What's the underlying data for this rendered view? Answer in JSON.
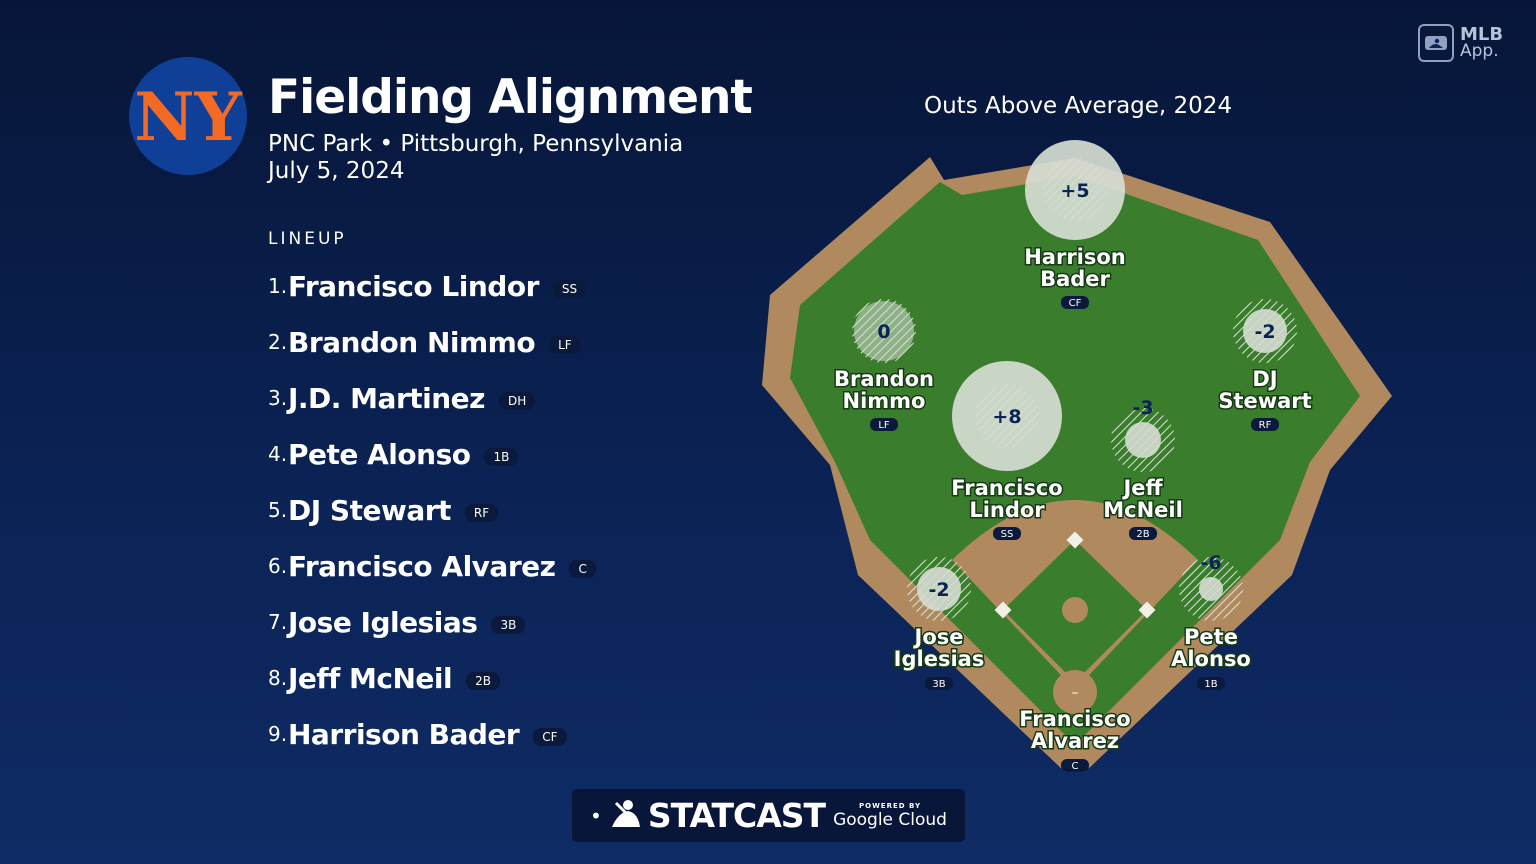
{
  "header": {
    "team_logo_text": "NY",
    "title": "Fielding Alignment",
    "venue": "PNC Park • Pittsburgh, Pennsylvania",
    "date": "July 5, 2024"
  },
  "brand": {
    "app_line1": "MLB",
    "app_line2": "App."
  },
  "lineup": {
    "heading": "LINEUP",
    "players": [
      {
        "num": "1.",
        "name": "Francisco Lindor",
        "pos": "SS"
      },
      {
        "num": "2.",
        "name": "Brandon Nimmo",
        "pos": "LF"
      },
      {
        "num": "3.",
        "name": "J.D. Martinez",
        "pos": "DH"
      },
      {
        "num": "4.",
        "name": "Pete Alonso",
        "pos": "1B"
      },
      {
        "num": "5.",
        "name": "DJ Stewart",
        "pos": "RF"
      },
      {
        "num": "6.",
        "name": "Francisco Alvarez",
        "pos": "C"
      },
      {
        "num": "7.",
        "name": "Jose Iglesias",
        "pos": "3B"
      },
      {
        "num": "8.",
        "name": "Jeff McNeil",
        "pos": "2B"
      },
      {
        "num": "9.",
        "name": "Harrison Bader",
        "pos": "CF"
      }
    ]
  },
  "field": {
    "title": "Outs Above Average, 2024",
    "fielders": [
      {
        "id": "cf",
        "first": "Harrison",
        "last": "Bader",
        "pos": "CF",
        "oaa": "+5",
        "value": 5
      },
      {
        "id": "lf",
        "first": "Brandon",
        "last": "Nimmo",
        "pos": "LF",
        "oaa": "0",
        "value": 0
      },
      {
        "id": "rf",
        "first": "DJ",
        "last": "Stewart",
        "pos": "RF",
        "oaa": "-2",
        "value": -2
      },
      {
        "id": "ss",
        "first": "Francisco",
        "last": "Lindor",
        "pos": "SS",
        "oaa": "+8",
        "value": 8
      },
      {
        "id": "2b",
        "first": "Jeff",
        "last": "McNeil",
        "pos": "2B",
        "oaa": "-3",
        "value": -3
      },
      {
        "id": "3b",
        "first": "Jose",
        "last": "Iglesias",
        "pos": "3B",
        "oaa": "-2",
        "value": -2
      },
      {
        "id": "1b",
        "first": "Pete",
        "last": "Alonso",
        "pos": "1B",
        "oaa": "-6",
        "value": -6
      },
      {
        "id": "c",
        "first": "Francisco",
        "last": "Alvarez",
        "pos": "C",
        "oaa": "–",
        "value": null
      }
    ]
  },
  "footer": {
    "statcast": "STATCAST",
    "powered_by": "POWERED BY",
    "google_cloud": "Google Cloud"
  },
  "colors": {
    "background": "#0b2254",
    "grass": "#3a7d2c",
    "dirt": "#b08a5e",
    "mets_blue": "#0f3f96",
    "mets_orange": "#f26a24"
  }
}
